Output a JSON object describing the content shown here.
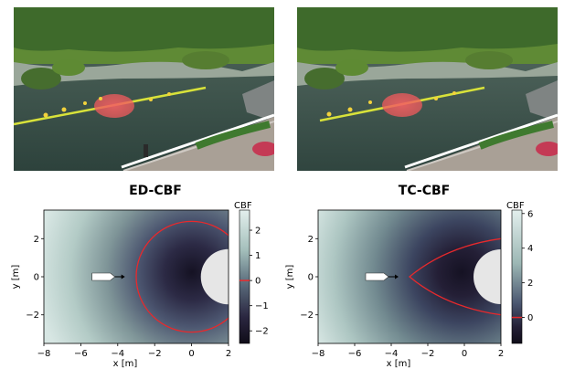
{
  "figure": {
    "photos": [
      {
        "name": "left",
        "scene": "pond-with-boats-left"
      },
      {
        "name": "right",
        "scene": "pond-with-boats-right"
      }
    ],
    "colors": {
      "water": "#3f5650",
      "grass": "#6f9a3a",
      "trees": "#3d6b2a",
      "path_line": "#d8e23a",
      "obstacle_ellipse": "#f0575a",
      "zero_level_contour": "#e8292c",
      "obstacle_fill": "#e6e6e6",
      "high_value": "#d7e6e3",
      "low_value": "#151223"
    }
  },
  "chart_data": [
    {
      "type": "heatmap",
      "title": "ED-CBF",
      "xlabel": "x [m]",
      "ylabel": "y [m]",
      "xlim": [
        -8,
        2
      ],
      "ylim": [
        -3.5,
        3.5
      ],
      "xticks": [
        "−8",
        "−6",
        "−4",
        "−2",
        "0",
        "2"
      ],
      "yticks": [
        "2",
        "0",
        "−2"
      ],
      "colorbar": {
        "label": "CBF",
        "ticks": [
          "2",
          "1",
          "0",
          "−1",
          "−2"
        ],
        "range": [
          -2.5,
          2.8
        ]
      },
      "obstacle": {
        "shape": "circle",
        "center": [
          2,
          0
        ],
        "radius": 1.5
      },
      "zero_contour": {
        "shape": "circle",
        "center": [
          0,
          0
        ],
        "radius": 3
      },
      "agent": {
        "position": [
          -4.5,
          0
        ],
        "heading": "+x"
      }
    },
    {
      "type": "heatmap",
      "title": "TC-CBF",
      "xlabel": "x [m]",
      "ylabel": "y [m]",
      "xlim": [
        -8,
        2
      ],
      "ylim": [
        -3.5,
        3.5
      ],
      "xticks": [
        "−8",
        "−6",
        "−4",
        "−2",
        "0",
        "2"
      ],
      "yticks": [
        "2",
        "0",
        "−2"
      ],
      "colorbar": {
        "label": "CBF",
        "ticks": [
          "6",
          "4",
          "2",
          "0"
        ],
        "range": [
          -1.5,
          6.2
        ]
      },
      "obstacle": {
        "shape": "circle",
        "center": [
          2,
          0
        ],
        "radius": 1.5
      },
      "zero_contour": {
        "shape": "cone",
        "apex": [
          -3,
          0
        ],
        "ends": [
          [
            2,
            2
          ],
          [
            2,
            -2
          ]
        ]
      },
      "agent": {
        "position": [
          -4.5,
          0
        ],
        "heading": "+x"
      }
    }
  ]
}
